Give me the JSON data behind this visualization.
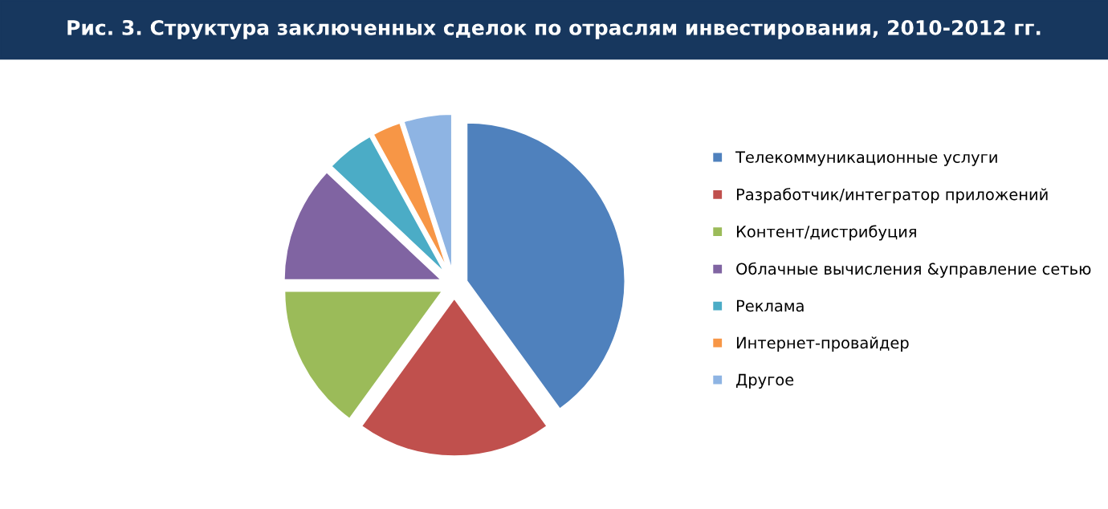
{
  "chart_data": {
    "type": "pie",
    "title": "Рис. 3. Структура заключенных сделок по отраслям инвестирования, 2010-2012 гг.",
    "categories": [
      "Телекоммуникационные услуги",
      "Разработчик/интегратор приложений",
      "Контент/дистрибуция",
      "Облачные вычисления &управление сетью",
      "Реклама",
      "Интернет-провайдер",
      "Другое"
    ],
    "values": [
      40,
      20,
      15,
      12,
      5,
      3,
      5
    ],
    "colors": [
      "#4f81bd",
      "#c0504d",
      "#9bbb59",
      "#8064a2",
      "#4bacc6",
      "#f79646",
      "#8eb4e3"
    ],
    "legend": "right"
  }
}
